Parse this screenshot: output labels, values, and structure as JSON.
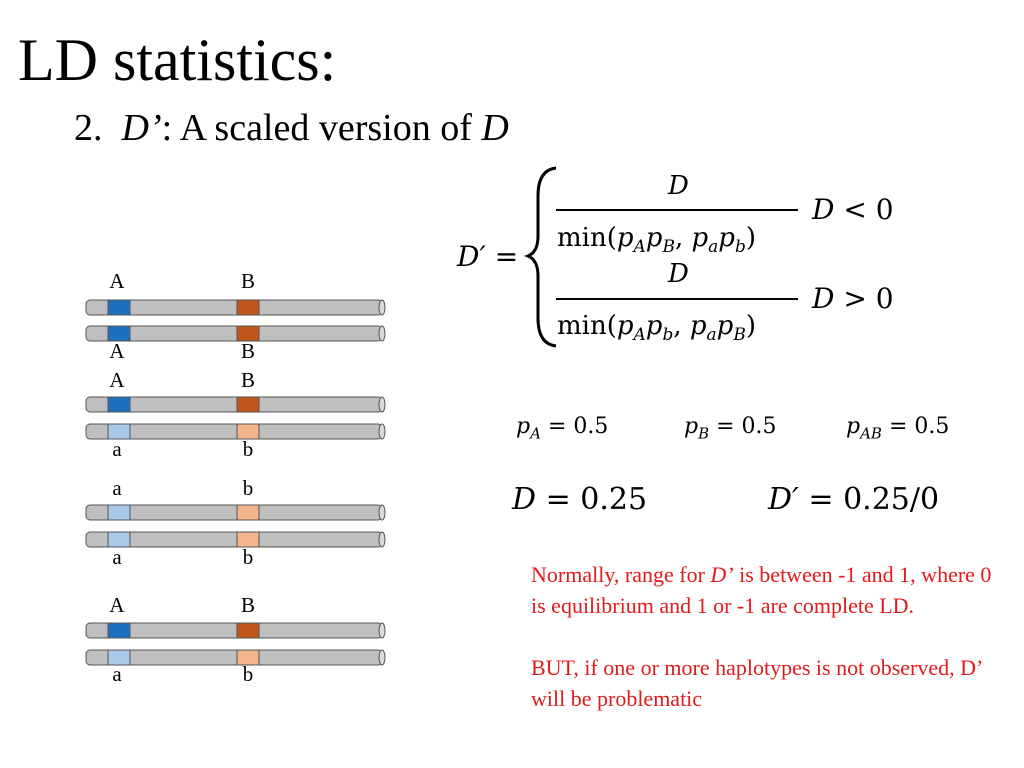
{
  "title": "LD statistics:",
  "subtitle": {
    "number": "2.",
    "term": "D’",
    "text": ": A scaled version of ",
    "var": "D"
  },
  "formula": {
    "lhs": "D′ =",
    "case1": {
      "numerator": "D",
      "denominator": "min(pApB, papb)",
      "condition": "D < 0"
    },
    "case2": {
      "numerator": "D",
      "denominator": "min(papb ... )",
      "condition": "D > 0"
    }
  },
  "chromosome_pairs": [
    {
      "top_labels": [
        "A",
        "B"
      ],
      "bottom_labels": [
        "A",
        "B"
      ],
      "top_colors": [
        "#1f6fbf",
        "#c0561a"
      ],
      "bottom_colors": [
        "#1f6fbf",
        "#c0561a"
      ]
    },
    {
      "top_labels": [
        "A",
        "B"
      ],
      "bottom_labels": [
        "a",
        "b"
      ],
      "top_colors": [
        "#1f6fbf",
        "#c0561a"
      ],
      "bottom_colors": [
        "#a9c8e8",
        "#f2b48a"
      ]
    },
    {
      "top_labels": [
        "a",
        "b"
      ],
      "bottom_labels": [
        "a",
        "b"
      ],
      "top_colors": [
        "#a9c8e8",
        "#f2b48a"
      ],
      "bottom_colors": [
        "#a9c8e8",
        "#f2b48a"
      ]
    },
    {
      "top_labels": [
        "A",
        "B"
      ],
      "bottom_labels": [
        "a",
        "b"
      ],
      "top_colors": [
        "#1f6fbf",
        "#c0561a"
      ],
      "bottom_colors": [
        "#a9c8e8",
        "#f2b48a"
      ]
    }
  ],
  "frequencies": {
    "pA": {
      "sym": "p",
      "sub": "A",
      "value": "= 0.5"
    },
    "pB": {
      "sym": "p",
      "sub": "B",
      "value": "= 0.5"
    },
    "pAB": {
      "sym": "p",
      "sub": "AB",
      "value": "= 0.5"
    }
  },
  "results": {
    "D": {
      "sym": "D",
      "value": "= 0.25"
    },
    "Dprime": {
      "sym": "D′",
      "value": "= 0.25/0"
    }
  },
  "note": {
    "line1_pre": "Normally, range for ",
    "line1_term": "D’",
    "line1_post": " is between -1 and 1, where 0 is equilibrium and 1 or -1 are complete LD.",
    "line2": "BUT, if one or more haplotypes is not observed, D’ will be problematic"
  },
  "colors": {
    "chromosome": "#bfbfbf",
    "allele_A": "#1f6fbf",
    "allele_a": "#a9c8e8",
    "allele_B": "#c0561a",
    "allele_b": "#f2b48a",
    "note_text": "#e31a1c"
  }
}
